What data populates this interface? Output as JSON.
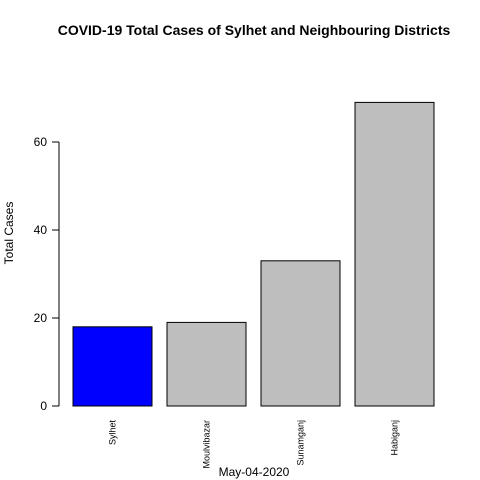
{
  "chart_data": {
    "type": "bar",
    "title": "COVID-19 Total Cases of Sylhet and Neighbouring Districts",
    "xlabel": "May-04-2020",
    "ylabel": "Total Cases",
    "categories": [
      "Sylhet",
      "Moulvibazar",
      "Sunamganj",
      "Habiganj"
    ],
    "values": [
      18,
      19,
      33,
      69
    ],
    "colors": [
      "#0000ff",
      "#bebebe",
      "#bebebe",
      "#bebebe"
    ],
    "yticks": [
      0,
      20,
      40,
      60
    ],
    "ylim": [
      0,
      69
    ],
    "grid": false,
    "legend": "none"
  }
}
